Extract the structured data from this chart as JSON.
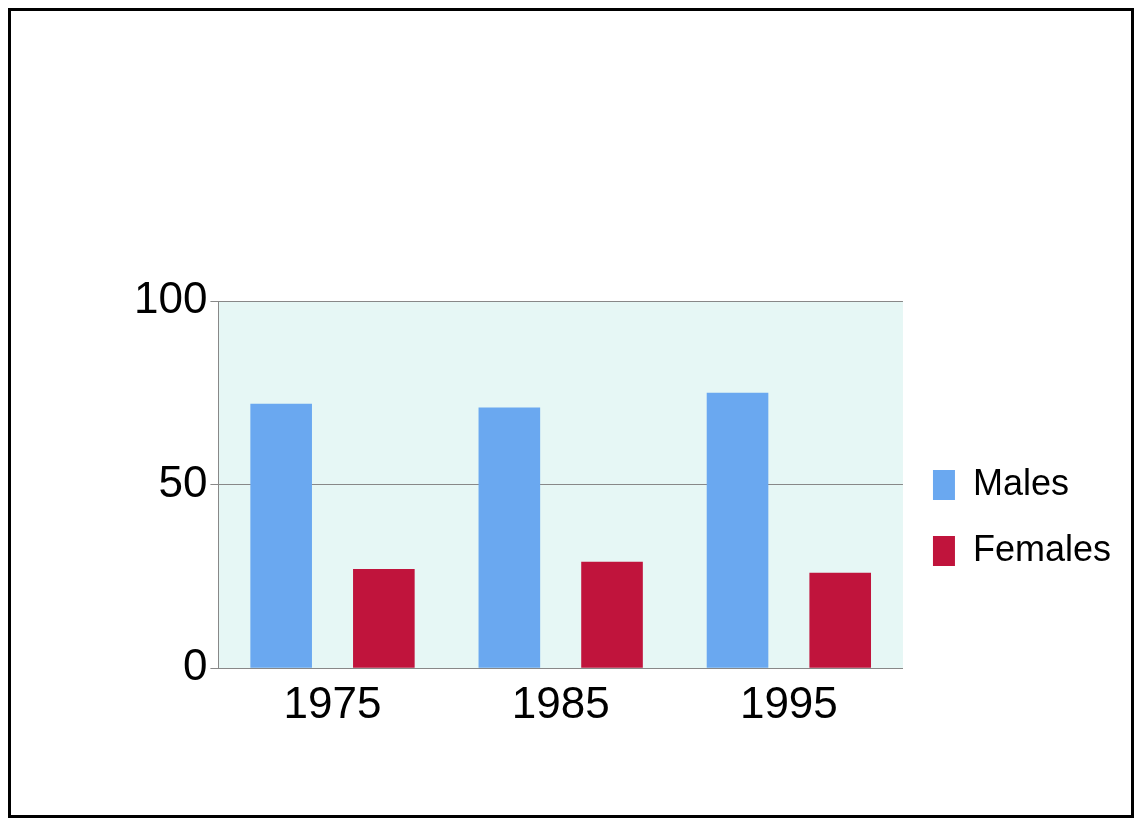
{
  "chart_data": {
    "type": "bar",
    "categories": [
      "1975",
      "1985",
      "1995"
    ],
    "series": [
      {
        "name": "Males",
        "color": "#6aa8f0",
        "values": [
          72,
          71,
          75
        ]
      },
      {
        "name": "Females",
        "color": "#c0143c",
        "values": [
          27,
          29,
          26
        ]
      }
    ],
    "ylim": [
      0,
      100
    ],
    "yticks": [
      0,
      50,
      100
    ],
    "grid": "y",
    "legend": "right"
  }
}
